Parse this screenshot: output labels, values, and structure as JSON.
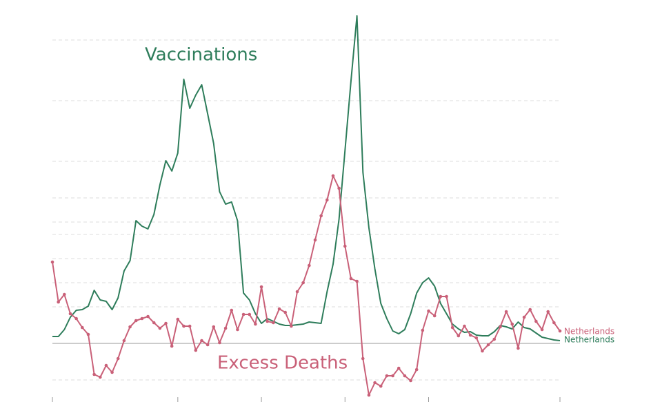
{
  "chart_data": {
    "type": "line",
    "annotations": [
      "Vaccinations",
      "Excess Deaths"
    ],
    "x": [
      0,
      1,
      2,
      3,
      4,
      5,
      6,
      7,
      8,
      9,
      10,
      11,
      12,
      13,
      14,
      15,
      16,
      17,
      18,
      19,
      20,
      21,
      22,
      23,
      24,
      25,
      26,
      27,
      28,
      29,
      30,
      31,
      32,
      33,
      34,
      35,
      36,
      37,
      38,
      39,
      40,
      41,
      42,
      43,
      44,
      45,
      46,
      47,
      48,
      49,
      50,
      51,
      52,
      53,
      54,
      55,
      56,
      57,
      58,
      59,
      60,
      61,
      62,
      63,
      64,
      65,
      66,
      67,
      68,
      69,
      70,
      71,
      72,
      73,
      74,
      75,
      76,
      77,
      78,
      79,
      80,
      81,
      82,
      83,
      84,
      85
    ],
    "xlim": [
      0,
      85
    ],
    "xticks": [
      0,
      21,
      35,
      49,
      63,
      85
    ],
    "ylim": [
      -8.5,
      49.8
    ],
    "yticks": [
      -5.3,
      0,
      5.3,
      8.8,
      12.3,
      15.8,
      17.6,
      21.1,
      26.4,
      35.2,
      44
    ],
    "grid": true,
    "series": [
      {
        "name": "Netherlands",
        "color": "#2e7d5b",
        "markers": false,
        "values": [
          1.0,
          1.0,
          2.0,
          3.8,
          4.8,
          4.9,
          5.4,
          7.7,
          6.3,
          6.1,
          4.9,
          6.6,
          10.5,
          12.0,
          17.8,
          17.0,
          16.6,
          18.7,
          23.0,
          26.5,
          25.0,
          27.6,
          38.3,
          34.1,
          36.0,
          37.5,
          33.3,
          29.0,
          22.0,
          20.2,
          20.5,
          17.8,
          7.3,
          6.3,
          4.3,
          2.9,
          3.6,
          3.2,
          2.8,
          2.6,
          2.6,
          2.7,
          2.8,
          3.1,
          3.0,
          2.9,
          7.5,
          11.5,
          18.0,
          28.0,
          38.0,
          47.5,
          24.8,
          16.8,
          10.8,
          5.8,
          3.6,
          1.8,
          1.4,
          2.0,
          4.3,
          7.3,
          8.8,
          9.5,
          8.3,
          5.8,
          4.3,
          2.8,
          2.1,
          1.6,
          1.7,
          1.2,
          1.1,
          1.1,
          1.7,
          2.6,
          2.4,
          2.1,
          3.1,
          2.3,
          2.1,
          1.5,
          0.9,
          0.7,
          0.5,
          0.4
        ]
      },
      {
        "name": "Netherlands",
        "color": "#c96078",
        "markers": true,
        "values": [
          11.8,
          6.0,
          7.1,
          4.3,
          3.6,
          2.3,
          1.3,
          -4.5,
          -4.9,
          -3.2,
          -4.2,
          -2.2,
          0.4,
          2.4,
          3.3,
          3.6,
          3.9,
          3.0,
          2.2,
          2.9,
          -0.4,
          3.5,
          2.5,
          2.5,
          -1.0,
          0.4,
          -0.2,
          2.4,
          0.1,
          2.2,
          4.8,
          2.0,
          4.2,
          4.2,
          2.8,
          8.2,
          3.2,
          3.0,
          5.0,
          4.5,
          2.5,
          7.5,
          8.8,
          11.3,
          15.0,
          18.5,
          20.8,
          24.3,
          22.5,
          14.1,
          9.4,
          9.0,
          -2.2,
          -7.5,
          -5.7,
          -6.2,
          -4.7,
          -4.7,
          -3.6,
          -4.7,
          -5.4,
          -3.8,
          1.9,
          4.7,
          4.0,
          6.8,
          6.8,
          2.3,
          1.1,
          2.5,
          1.2,
          0.8,
          -1.1,
          -0.2,
          0.6,
          2.4,
          4.6,
          2.8,
          -0.7,
          3.8,
          4.9,
          3.2,
          2.0,
          4.6,
          3.0,
          1.8
        ]
      }
    ]
  }
}
